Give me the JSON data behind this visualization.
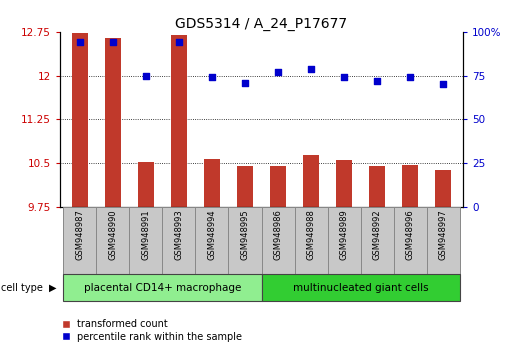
{
  "title": "GDS5314 / A_24_P17677",
  "samples": [
    "GSM948987",
    "GSM948990",
    "GSM948991",
    "GSM948993",
    "GSM948994",
    "GSM948995",
    "GSM948986",
    "GSM948988",
    "GSM948989",
    "GSM948992",
    "GSM948996",
    "GSM948997"
  ],
  "bar_values": [
    12.73,
    12.65,
    10.52,
    12.7,
    10.58,
    10.46,
    10.46,
    10.65,
    10.56,
    10.46,
    10.47,
    10.38
  ],
  "scatter_values": [
    94,
    94,
    75,
    94,
    74,
    71,
    77,
    79,
    74,
    72,
    74,
    70
  ],
  "bar_color": "#c0392b",
  "scatter_color": "#0000cc",
  "ylim_left": [
    9.75,
    12.75
  ],
  "ylim_right": [
    0,
    100
  ],
  "yticks_left": [
    9.75,
    10.5,
    11.25,
    12.0,
    12.75
  ],
  "yticks_right": [
    0,
    25,
    50,
    75,
    100
  ],
  "ytick_labels_left": [
    "9.75",
    "10.5",
    "11.25",
    "12",
    "12.75"
  ],
  "ytick_labels_right": [
    "0",
    "25",
    "50",
    "75",
    "100%"
  ],
  "group1_label": "placental CD14+ macrophage",
  "group2_label": "multinucleated giant cells",
  "group1_count": 6,
  "group2_count": 6,
  "legend_bar_label": "transformed count",
  "legend_scatter_label": "percentile rank within the sample",
  "cell_type_label": "cell type",
  "group1_color": "#90EE90",
  "group2_color": "#32CD32",
  "ylabel_left_color": "#cc0000",
  "ylabel_right_color": "#0000cc",
  "bar_bottom": 9.75,
  "background_color": "#ffffff",
  "tick_bg_color": "#c8c8c8"
}
